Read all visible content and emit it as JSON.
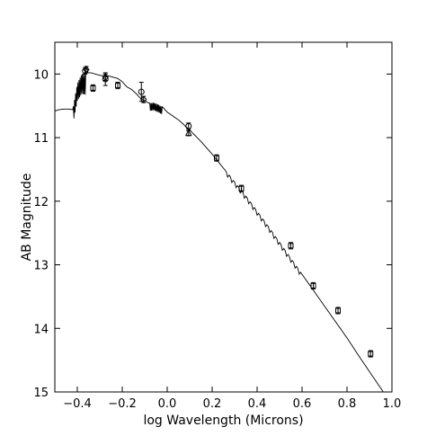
{
  "chart_data": {
    "type": "scatter",
    "xlabel": "log Wavelength (Microns)",
    "ylabel": "AB Magnitude",
    "xlim": [
      -0.5,
      1.0
    ],
    "ylim": [
      15,
      9.5
    ],
    "y_inverted": true,
    "grid": false,
    "xticks": [
      -0.4,
      -0.2,
      0.0,
      0.2,
      0.4,
      0.6,
      0.8,
      1.0
    ],
    "xtick_labels": [
      "−0.4",
      "−0.2",
      "0.0",
      "0.2",
      "0.4",
      "0.6",
      "0.8",
      "1.0"
    ],
    "yticks": [
      10,
      11,
      12,
      13,
      14,
      15
    ],
    "ytick_labels": [
      "10",
      "11",
      "12",
      "13",
      "14",
      "15"
    ],
    "series": [
      {
        "type": "line",
        "style": "model_spectrum",
        "x": [
          -0.5,
          -0.48,
          -0.46,
          -0.44,
          -0.42,
          -0.4,
          -0.38,
          -0.36,
          -0.34,
          -0.32,
          -0.3,
          -0.28,
          -0.26,
          -0.24,
          -0.22,
          -0.2,
          -0.18,
          -0.16,
          -0.14,
          -0.12,
          -0.1,
          -0.08,
          -0.06,
          -0.04,
          -0.02,
          0.0,
          0.05,
          0.1,
          0.15,
          0.2,
          0.25,
          0.3,
          0.35,
          0.4,
          0.45,
          0.5,
          0.55,
          0.6,
          0.65,
          0.7,
          0.75,
          0.8,
          0.85,
          0.9,
          0.95,
          1.0
        ],
        "y": [
          10.58,
          10.56,
          10.55,
          10.55,
          10.56,
          10.15,
          10.0,
          9.98,
          9.98,
          10.0,
          10.02,
          10.03,
          10.03,
          10.05,
          10.07,
          10.12,
          10.2,
          10.24,
          10.3,
          10.38,
          10.42,
          10.46,
          10.45,
          10.48,
          10.52,
          10.6,
          10.72,
          10.88,
          11.06,
          11.26,
          11.48,
          11.7,
          11.92,
          12.16,
          12.4,
          12.65,
          12.9,
          13.15,
          13.4,
          13.65,
          13.9,
          14.15,
          14.42,
          14.68,
          14.94,
          15.2
        ]
      },
      {
        "type": "scatter",
        "marker": "circle",
        "x": [
          -0.365,
          -0.275,
          -0.115,
          0.095
        ],
        "y": [
          9.95,
          10.08,
          10.28,
          10.82
        ],
        "yerr": [
          0.05,
          0.1,
          0.15,
          0.05
        ]
      },
      {
        "type": "scatter",
        "marker": "diamond",
        "x": [
          -0.36,
          -0.275,
          -0.105
        ],
        "y": [
          9.93,
          10.05,
          10.4
        ],
        "yerr": [
          0.05,
          0.05,
          0.05
        ]
      },
      {
        "type": "scatter",
        "marker": "square",
        "x": [
          -0.33,
          -0.22,
          0.22,
          0.33,
          0.55,
          0.65,
          0.76,
          0.905
        ],
        "y": [
          10.22,
          10.18,
          11.32,
          11.8,
          12.7,
          13.33,
          13.72,
          14.4
        ],
        "yerr": [
          0.05,
          0.05,
          0.05,
          0.05,
          0.05,
          0.05,
          0.05,
          0.05
        ]
      },
      {
        "type": "scatter",
        "marker": "triangle",
        "x": [
          0.095
        ],
        "y": [
          10.93
        ],
        "yerr": [
          0.04
        ]
      }
    ]
  }
}
